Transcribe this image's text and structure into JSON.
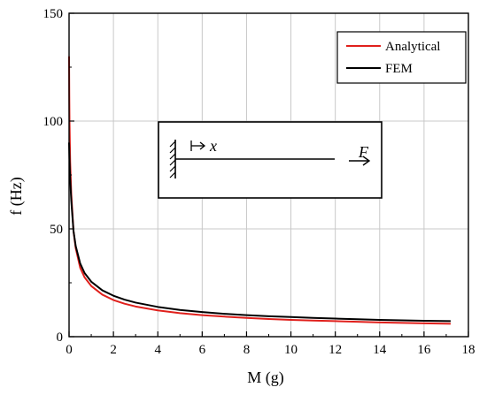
{
  "chart_data": {
    "type": "line",
    "xlabel": "M (g)",
    "ylabel": "f (Hz)",
    "xlim": [
      0,
      18
    ],
    "ylim": [
      0,
      150
    ],
    "xticks": [
      0,
      2,
      4,
      6,
      8,
      10,
      12,
      14,
      16,
      18
    ],
    "yticks": [
      0,
      50,
      100,
      150
    ],
    "grid": true,
    "legend_position": "top-right",
    "series": [
      {
        "name": "Analytical",
        "color": "#e0201c",
        "x": [
          0.0,
          0.01,
          0.02,
          0.05,
          0.1,
          0.2,
          0.3,
          0.5,
          0.7,
          1.0,
          1.5,
          2.0,
          2.5,
          3.0,
          4.0,
          5.0,
          6.0,
          7.0,
          8.0,
          9.0,
          10.0,
          11.0,
          12.0,
          13.0,
          14.0,
          15.0,
          16.0,
          17.2
        ],
        "y": [
          130,
          112,
          100,
          81,
          66,
          49,
          41,
          32,
          27.5,
          23.5,
          19.5,
          17.0,
          15.3,
          14.0,
          12.2,
          10.9,
          10.0,
          9.3,
          8.7,
          8.2,
          7.8,
          7.5,
          7.2,
          6.9,
          6.6,
          6.4,
          6.2,
          6.0
        ]
      },
      {
        "name": "FEM",
        "color": "#000000",
        "x": [
          0.0,
          0.01,
          0.02,
          0.05,
          0.1,
          0.2,
          0.3,
          0.5,
          0.7,
          1.0,
          1.5,
          2.0,
          2.5,
          3.0,
          4.0,
          5.0,
          6.0,
          7.0,
          8.0,
          9.0,
          10.0,
          11.0,
          12.0,
          13.0,
          14.0,
          15.0,
          16.0,
          17.2
        ],
        "y": [
          90,
          86,
          82,
          73,
          63,
          49,
          42,
          34,
          29.5,
          25.5,
          21.5,
          19.0,
          17.2,
          15.8,
          13.8,
          12.4,
          11.4,
          10.6,
          10.0,
          9.5,
          9.1,
          8.7,
          8.4,
          8.1,
          7.8,
          7.6,
          7.4,
          7.2
        ]
      }
    ],
    "inset": {
      "labels": [
        "x",
        "F"
      ]
    }
  }
}
